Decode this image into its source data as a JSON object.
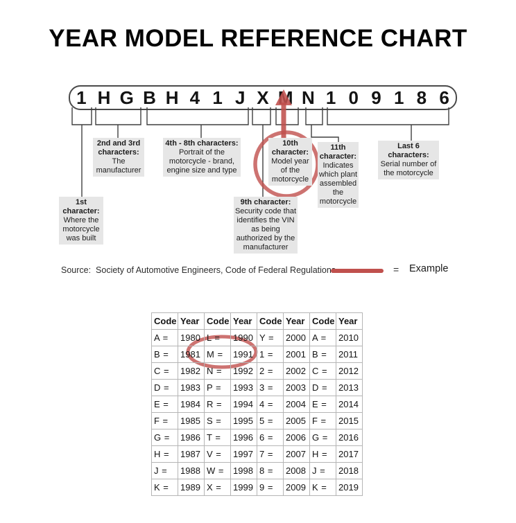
{
  "title": "YEAR MODEL REFERENCE CHART",
  "vin": {
    "characters": [
      "1",
      "H",
      "G",
      "B",
      "H",
      "4",
      "1",
      "J",
      "X",
      "M",
      "N",
      "1",
      "0",
      "9",
      "1",
      "8",
      "6"
    ]
  },
  "callouts": [
    {
      "title": "2nd and 3rd characters:",
      "body": "The manufacturer"
    },
    {
      "title": "4th - 8th characters:",
      "body": "Portrait of the motorcycle - brand, engine size and type"
    },
    {
      "title": "10th character:",
      "body": "Model year of the motorcycle"
    },
    {
      "title": "11th character:",
      "body": "Indicates which plant assembled the motorcycle"
    },
    {
      "title": "Last 6 characters:",
      "body": "Serial number of the motorcycle"
    },
    {
      "title": "1st character:",
      "body": "Where the motorcycle was built"
    },
    {
      "title": "9th character:",
      "body": "Security code that identifies the VIN as being authorized by the manufacturer"
    }
  ],
  "source": {
    "label": "Source:  Society of Automotive Engineers, Code of Federal Regulations"
  },
  "legend": {
    "equals_sign": "=",
    "label": "Example"
  },
  "annotations": {
    "highlighted_vin_character": "M",
    "circled_callout": "10th character: Model year of the motorcycle",
    "circled_table_entry": "M = 1991"
  },
  "colors": {
    "accent_red": "#c0504d",
    "callout_bg": "#e6e6e6",
    "connector_line": "#3f3f3f",
    "table_border": "#b5b5b5"
  },
  "table": {
    "headers": [
      "Code",
      "Year",
      "Code",
      "Year",
      "Code",
      "Year",
      "Code",
      "Year"
    ],
    "rows": [
      [
        "A =",
        "1980",
        "L =",
        "1990",
        "Y =",
        "2000",
        "A =",
        "2010"
      ],
      [
        "B =",
        "1981",
        "M =",
        "1991",
        "1 =",
        "2001",
        "B =",
        "2011"
      ],
      [
        "C =",
        "1982",
        "N =",
        "1992",
        "2 =",
        "2002",
        "C =",
        "2012"
      ],
      [
        "D =",
        "1983",
        "P =",
        "1993",
        "3 =",
        "2003",
        "D =",
        "2013"
      ],
      [
        "E =",
        "1984",
        "R =",
        "1994",
        "4 =",
        "2004",
        "E =",
        "2014"
      ],
      [
        "F =",
        "1985",
        "S =",
        "1995",
        "5 =",
        "2005",
        "F =",
        "2015"
      ],
      [
        "G =",
        "1986",
        "T =",
        "1996",
        "6 =",
        "2006",
        "G =",
        "2016"
      ],
      [
        "H =",
        "1987",
        "V =",
        "1997",
        "7 =",
        "2007",
        "H =",
        "2017"
      ],
      [
        "J =",
        "1988",
        "W =",
        "1998",
        "8 =",
        "2008",
        "J =",
        "2018"
      ],
      [
        "K =",
        "1989",
        "X =",
        "1999",
        "9 =",
        "2009",
        "K =",
        "2019"
      ]
    ]
  }
}
